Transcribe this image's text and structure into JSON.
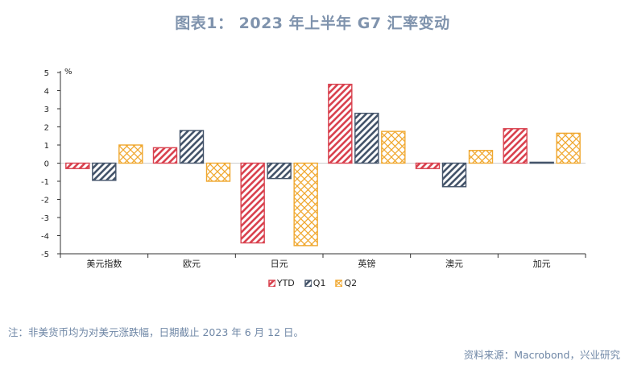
{
  "title": "图表1： 2023 年上半年 G7 汇率变动",
  "note": "注：非美货币均为对美元涨跌幅，日期截止 2023 年 6 月 12 日。",
  "source": "资料来源：Macrobond，兴业研究",
  "chart_data": {
    "type": "bar",
    "categories": [
      "美元指数",
      "欧元",
      "日元",
      "英镑",
      "澳元",
      "加元"
    ],
    "series": [
      {
        "name": "YTD",
        "color": "#d9424f",
        "pattern": "diagonal",
        "values": [
          -0.3,
          0.85,
          -4.4,
          4.35,
          -0.3,
          1.9
        ]
      },
      {
        "name": "Q1",
        "color": "#44546a",
        "pattern": "diagonal",
        "values": [
          -0.95,
          1.8,
          -0.85,
          2.75,
          -1.3,
          0.05
        ]
      },
      {
        "name": "Q2",
        "color": "#f0a830",
        "pattern": "crosshatch",
        "values": [
          1.0,
          -1.0,
          -4.55,
          1.75,
          0.7,
          1.65
        ]
      }
    ],
    "ylabel": "%",
    "ylim": [
      -5,
      5
    ],
    "yticks": [
      5,
      4,
      3,
      2,
      1,
      0,
      -1,
      -2,
      -3,
      -4,
      -5
    ],
    "legend": "bottom",
    "grid": false
  }
}
